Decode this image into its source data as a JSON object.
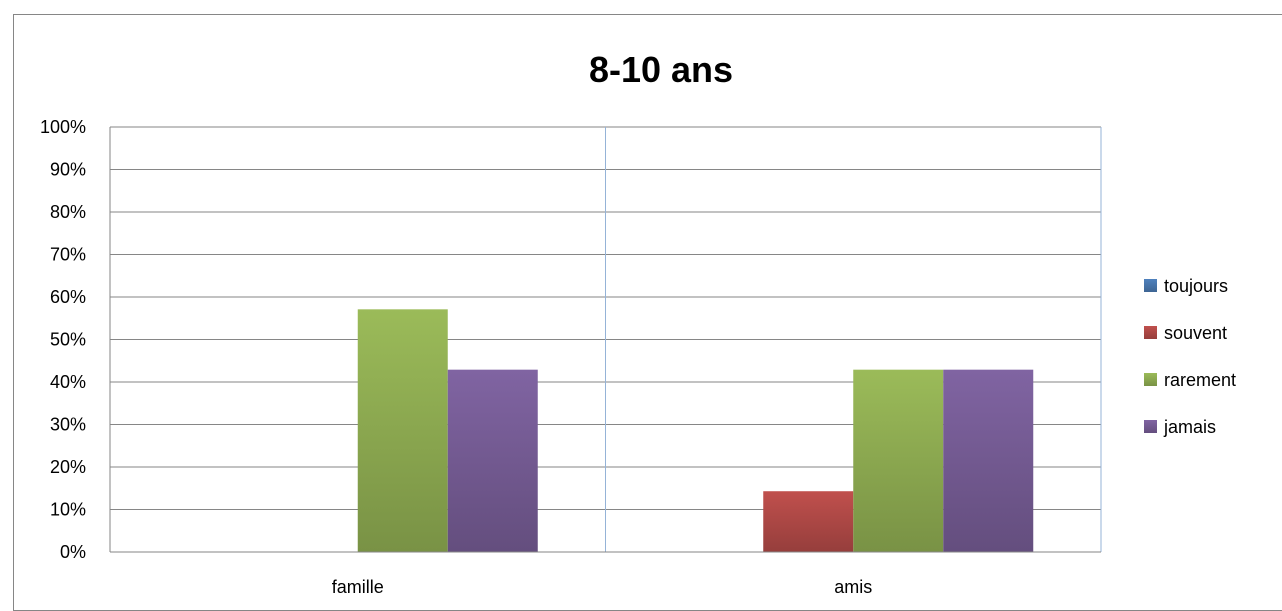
{
  "chart_data": {
    "type": "bar",
    "title": "8-10 ans",
    "categories": [
      "famille",
      "amis"
    ],
    "series": [
      {
        "name": "toujours",
        "values": [
          0,
          0
        ],
        "color": "#4F81BD"
      },
      {
        "name": "souvent",
        "values": [
          0,
          14.3
        ],
        "color": "#C0504D"
      },
      {
        "name": "rarement",
        "values": [
          57.1,
          42.9
        ],
        "color": "#9BBB59"
      },
      {
        "name": "jamais",
        "values": [
          42.9,
          42.9
        ],
        "color": "#8064A2"
      }
    ],
    "ylim": [
      0,
      100
    ],
    "yticks": [
      "0%",
      "10%",
      "20%",
      "30%",
      "40%",
      "50%",
      "60%",
      "70%",
      "80%",
      "90%",
      "100%"
    ],
    "grid": true,
    "legend": "right"
  }
}
